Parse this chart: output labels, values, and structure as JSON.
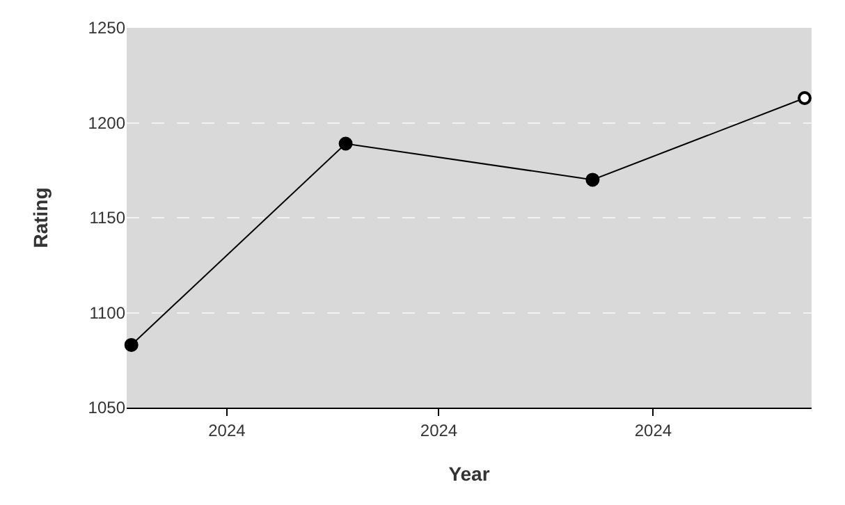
{
  "chart_data": {
    "type": "line",
    "xlabel": "Year",
    "ylabel": "Rating",
    "x": [
      "2024-02-20",
      "2024-05-22",
      "2024-09-05",
      "2024-12-05"
    ],
    "series": [
      {
        "color": "#000000",
        "values": [
          1083,
          1189,
          1170,
          1213
        ],
        "colors": [
          "#000000",
          "#000000",
          "#000000",
          "#ffffff"
        ]
      }
    ],
    "xlim": [
      "2024-02-18",
      "2024-12-08"
    ],
    "xticks": [
      {
        "value": "2024-04-01",
        "label": "2024"
      },
      {
        "value": "2024-07-01",
        "label": "2024"
      },
      {
        "value": "2024-10-01",
        "label": "2024"
      }
    ],
    "ylim": [
      1050,
      1250
    ],
    "yticks": [
      1050,
      1100,
      1150,
      1200,
      1250
    ],
    "grid": "y",
    "marker": "circle",
    "line_style": "solid",
    "legend": false
  }
}
